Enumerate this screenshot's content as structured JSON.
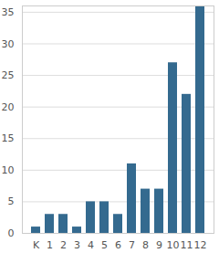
{
  "chart_data": {
    "type": "bar",
    "categories": [
      "K",
      "1",
      "2",
      "3",
      "4",
      "5",
      "6",
      "7",
      "8",
      "9",
      "10",
      "11",
      "12"
    ],
    "values": [
      1,
      3,
      3,
      1,
      5,
      5,
      3,
      11,
      7,
      7,
      27,
      22,
      36
    ],
    "color": "#346a8f",
    "ylim": [
      0,
      36
    ],
    "yticks": [
      0,
      5,
      10,
      15,
      20,
      25,
      30,
      35
    ],
    "grid": true
  }
}
